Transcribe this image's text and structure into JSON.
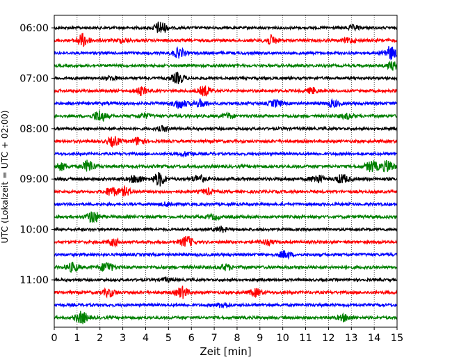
{
  "chart_data": {
    "type": "line",
    "subtype": "helicorder",
    "xlabel": "Zeit  [min]",
    "ylabel": "UTC (Lokalzeit = UTC + 02:00)",
    "xlim": [
      0,
      15
    ],
    "xticks": [
      0,
      1,
      2,
      3,
      4,
      5,
      6,
      7,
      8,
      9,
      10,
      11,
      12,
      13,
      14,
      15
    ],
    "y_tick_labels": [
      {
        "label": "06:00",
        "trace_index": 0
      },
      {
        "label": "07:00",
        "trace_index": 4
      },
      {
        "label": "08:00",
        "trace_index": 8
      },
      {
        "label": "09:00",
        "trace_index": 12
      },
      {
        "label": "10:00",
        "trace_index": 16
      },
      {
        "label": "11:00",
        "trace_index": 20
      }
    ],
    "grid": {
      "vertical": true,
      "style": "dotted"
    },
    "trace_minutes": 15,
    "trace_colors": [
      "#000000",
      "#ff0000",
      "#0000ff",
      "#008000"
    ],
    "traces": [
      {
        "start": "06:00",
        "noise": 0.25,
        "bursts": [
          [
            4.65,
            1.0
          ],
          [
            13.1,
            0.35
          ]
        ]
      },
      {
        "start": "06:15",
        "noise": 0.3,
        "bursts": [
          [
            1.25,
            1.0
          ],
          [
            3.0,
            0.3
          ],
          [
            9.5,
            0.7
          ],
          [
            12.9,
            0.35
          ]
        ]
      },
      {
        "start": "06:30",
        "noise": 0.3,
        "bursts": [
          [
            5.45,
            0.7
          ],
          [
            14.7,
            1.0
          ]
        ]
      },
      {
        "start": "06:45",
        "noise": 0.25,
        "bursts": [
          [
            14.8,
            0.6
          ]
        ]
      },
      {
        "start": "07:00",
        "noise": 0.25,
        "bursts": [
          [
            5.4,
            0.8
          ],
          [
            2.5,
            0.3
          ]
        ]
      },
      {
        "start": "07:15",
        "noise": 0.25,
        "bursts": [
          [
            3.8,
            0.6
          ],
          [
            6.6,
            0.75
          ],
          [
            11.3,
            0.45
          ]
        ]
      },
      {
        "start": "07:30",
        "noise": 0.35,
        "bursts": [
          [
            5.5,
            0.7
          ],
          [
            6.4,
            0.55
          ],
          [
            9.7,
            0.5
          ],
          [
            12.2,
            0.5
          ]
        ]
      },
      {
        "start": "07:45",
        "noise": 0.35,
        "bursts": [
          [
            2.0,
            0.9
          ],
          [
            3.9,
            0.35
          ],
          [
            7.6,
            0.35
          ],
          [
            12.8,
            0.35
          ]
        ]
      },
      {
        "start": "08:00",
        "noise": 0.25,
        "bursts": [
          [
            4.8,
            0.35
          ]
        ]
      },
      {
        "start": "08:15",
        "noise": 0.3,
        "bursts": [
          [
            2.6,
            0.7
          ],
          [
            3.7,
            0.6
          ]
        ]
      },
      {
        "start": "08:30",
        "noise": 0.25,
        "bursts": [
          [
            5.8,
            0.3
          ]
        ]
      },
      {
        "start": "08:45",
        "noise": 0.35,
        "bursts": [
          [
            0.3,
            0.55
          ],
          [
            1.5,
            0.9
          ],
          [
            13.9,
            0.85
          ],
          [
            14.6,
            0.9
          ]
        ]
      },
      {
        "start": "09:00",
        "noise": 0.4,
        "bursts": [
          [
            4.6,
            1.0
          ],
          [
            3.6,
            0.6
          ],
          [
            6.3,
            0.55
          ],
          [
            11.5,
            0.6
          ],
          [
            12.6,
            0.65
          ]
        ]
      },
      {
        "start": "09:15",
        "noise": 0.3,
        "bursts": [
          [
            2.5,
            0.7
          ],
          [
            3.1,
            0.6
          ],
          [
            6.7,
            0.4
          ]
        ]
      },
      {
        "start": "09:30",
        "noise": 0.3,
        "bursts": [
          [
            5.0,
            0.3
          ]
        ]
      },
      {
        "start": "09:45",
        "noise": 0.3,
        "bursts": [
          [
            1.7,
            0.95
          ],
          [
            7.0,
            0.35
          ]
        ]
      },
      {
        "start": "10:00",
        "noise": 0.25,
        "bursts": [
          [
            7.3,
            0.4
          ]
        ]
      },
      {
        "start": "10:15",
        "noise": 0.3,
        "bursts": [
          [
            2.6,
            0.5
          ],
          [
            5.8,
            0.85
          ],
          [
            9.3,
            0.35
          ]
        ]
      },
      {
        "start": "10:30",
        "noise": 0.3,
        "bursts": [
          [
            10.1,
            0.55
          ]
        ]
      },
      {
        "start": "10:45",
        "noise": 0.35,
        "bursts": [
          [
            0.8,
            0.65
          ],
          [
            2.3,
            0.8
          ],
          [
            7.5,
            0.4
          ]
        ]
      },
      {
        "start": "11:00",
        "noise": 0.25,
        "bursts": [
          [
            4.9,
            0.3
          ]
        ]
      },
      {
        "start": "11:15",
        "noise": 0.3,
        "bursts": [
          [
            2.4,
            0.6
          ],
          [
            5.6,
            0.85
          ],
          [
            8.8,
            0.55
          ]
        ]
      },
      {
        "start": "11:30",
        "noise": 0.3,
        "bursts": [
          [
            7.4,
            0.4
          ]
        ]
      },
      {
        "start": "11:45",
        "noise": 0.3,
        "bursts": [
          [
            1.2,
            0.9
          ],
          [
            12.7,
            0.5
          ]
        ]
      }
    ]
  }
}
